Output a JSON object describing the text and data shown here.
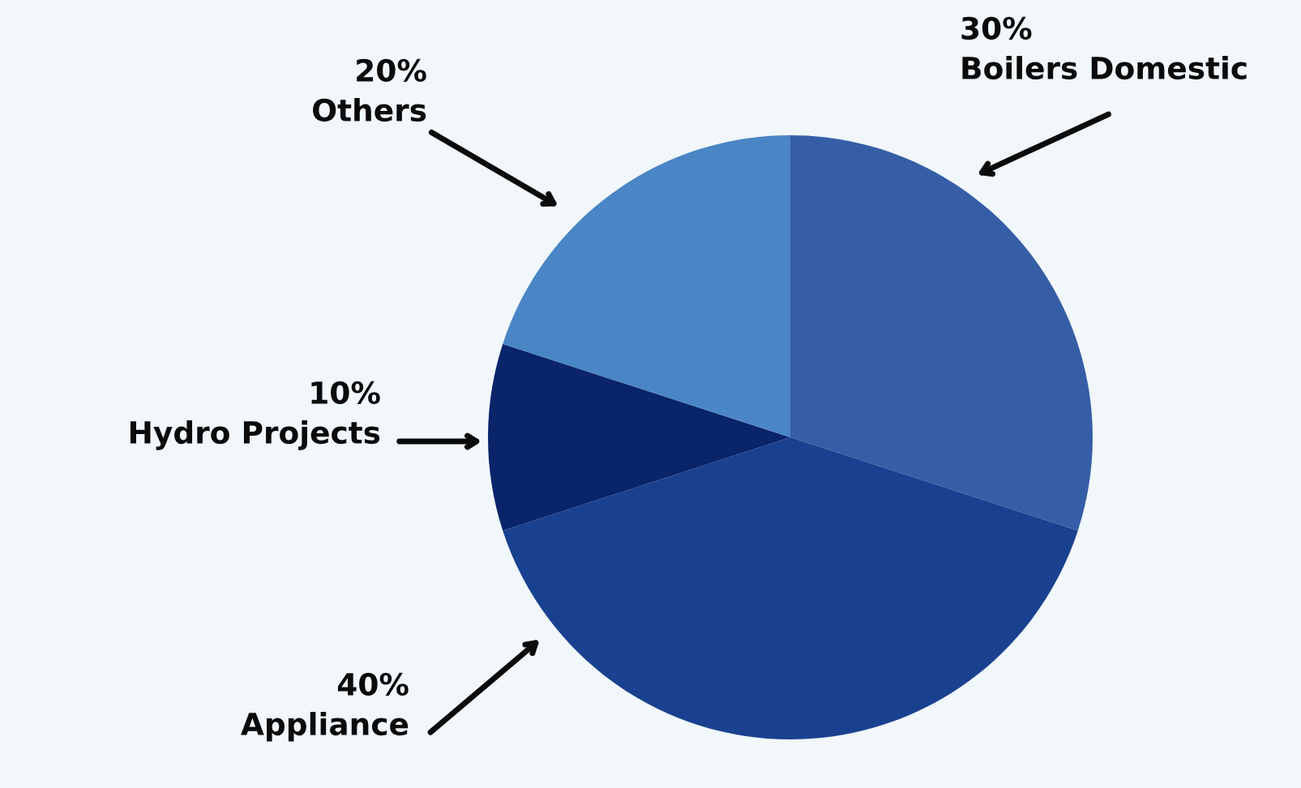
{
  "chart_data": {
    "type": "pie",
    "categories": [
      "Boilers Domestic",
      "Appliance",
      "Hydro Projects",
      "Others"
    ],
    "values": [
      30,
      40,
      10,
      20
    ],
    "value_labels": [
      "30%",
      "40%",
      "10%",
      "20%"
    ],
    "colors": [
      "#355ea6",
      "#1a4190",
      "#0a246a",
      "#4a85c5"
    ],
    "legend": false
  }
}
